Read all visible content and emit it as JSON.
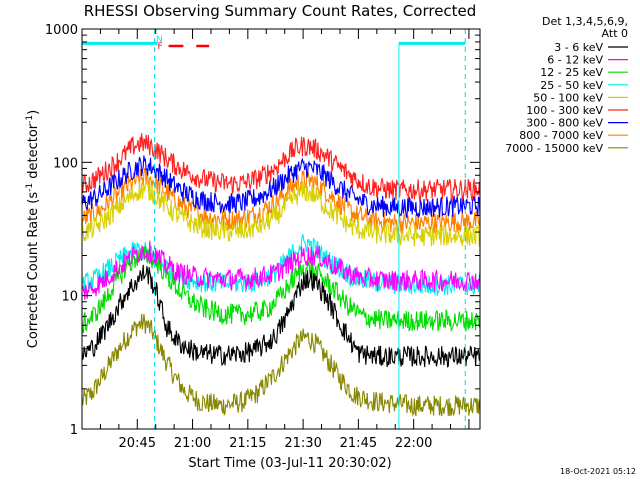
{
  "chart_data": {
    "type": "line",
    "title": "RHESSI Observing Summary Count Rates, Corrected",
    "xlabel": "Start Time (03-Jul-11 20:30:02)",
    "ylabel": "Corrected Count Rate (s⁻¹ detector⁻¹)",
    "ylabel_parts": [
      "Corrected Count Rate (s",
      "-1",
      " detector",
      "-1",
      ")"
    ],
    "yscale": "log",
    "ylim": [
      1,
      1000
    ],
    "yticks": [
      {
        "v": 1,
        "label": "1"
      },
      {
        "v": 10,
        "label": "10"
      },
      {
        "v": 100,
        "label": "100"
      },
      {
        "v": 1000,
        "label": "1000"
      }
    ],
    "xlim_min": [
      0,
      108
    ],
    "xticks": [
      {
        "v": 15,
        "label": "20:45"
      },
      {
        "v": 30,
        "label": "21:00"
      },
      {
        "v": 45,
        "label": "21:15"
      },
      {
        "v": 60,
        "label": "21:30"
      },
      {
        "v": 75,
        "label": "21:45"
      },
      {
        "v": 90,
        "label": "22:00"
      }
    ],
    "legend_header": [
      "Det 1,3,4,5,6,9,",
      "Att 0"
    ],
    "legend_position": "right",
    "series": [
      {
        "name": "3 - 6 keV",
        "color": "#000000",
        "values": [
          [
            0,
            3.6
          ],
          [
            3,
            4.1
          ],
          [
            6,
            5.4
          ],
          [
            9,
            7.5
          ],
          [
            12,
            10.5
          ],
          [
            15,
            13
          ],
          [
            17,
            15
          ],
          [
            18,
            14.5
          ],
          [
            20,
            11
          ],
          [
            21.5,
            8
          ],
          [
            23,
            5.8
          ],
          [
            26,
            4.5
          ],
          [
            29,
            4
          ],
          [
            32,
            3.7
          ],
          [
            36,
            3.6
          ],
          [
            40,
            3.6
          ],
          [
            44,
            3.7
          ],
          [
            48,
            4
          ],
          [
            52,
            4.8
          ],
          [
            55,
            6.5
          ],
          [
            58,
            10
          ],
          [
            60,
            13
          ],
          [
            62,
            13.5
          ],
          [
            64,
            12
          ],
          [
            66,
            10
          ],
          [
            68,
            8
          ],
          [
            70,
            6.2
          ],
          [
            72,
            5
          ],
          [
            75,
            3.7
          ],
          [
            80,
            3.5
          ],
          [
            90,
            3.5
          ],
          [
            104,
            3.5
          ]
        ]
      },
      {
        "name": "6 - 12 keV",
        "color": "#ff00ff",
        "values": [
          [
            0,
            10.5
          ],
          [
            3,
            11.5
          ],
          [
            6,
            13
          ],
          [
            9,
            15.5
          ],
          [
            12,
            18
          ],
          [
            15,
            21
          ],
          [
            18,
            22
          ],
          [
            22,
            18
          ],
          [
            26,
            15
          ],
          [
            30,
            14
          ],
          [
            34,
            13.5
          ],
          [
            40,
            13.3
          ],
          [
            46,
            13.5
          ],
          [
            52,
            14.5
          ],
          [
            56,
            17
          ],
          [
            60,
            20
          ],
          [
            64,
            20
          ],
          [
            68,
            17
          ],
          [
            72,
            15
          ],
          [
            76,
            13.5
          ],
          [
            82,
            13
          ],
          [
            90,
            13
          ],
          [
            104,
            13
          ]
        ]
      },
      {
        "name": "12 - 25 keV",
        "color": "#00dd00",
        "values": [
          [
            0,
            6
          ],
          [
            3,
            7
          ],
          [
            6,
            9
          ],
          [
            9,
            12.5
          ],
          [
            12,
            16.5
          ],
          [
            15,
            19.5
          ],
          [
            18,
            20
          ],
          [
            21,
            17
          ],
          [
            24,
            13
          ],
          [
            27,
            10.5
          ],
          [
            30,
            9
          ],
          [
            33,
            8
          ],
          [
            38,
            7.3
          ],
          [
            44,
            7.2
          ],
          [
            50,
            7.8
          ],
          [
            54,
            10
          ],
          [
            58,
            14
          ],
          [
            60,
            16
          ],
          [
            62,
            16
          ],
          [
            64,
            14.5
          ],
          [
            66,
            13
          ],
          [
            68,
            11.5
          ],
          [
            72,
            8.5
          ],
          [
            76,
            7
          ],
          [
            82,
            6.5
          ],
          [
            90,
            6.5
          ],
          [
            104,
            6.5
          ]
        ]
      },
      {
        "name": "25 - 50 keV",
        "color": "#00eeee",
        "values": [
          [
            0,
            12
          ],
          [
            4,
            13.5
          ],
          [
            8,
            16.5
          ],
          [
            12,
            20
          ],
          [
            15,
            22
          ],
          [
            18,
            21
          ],
          [
            21,
            18
          ],
          [
            24,
            15.5
          ],
          [
            28,
            13.5
          ],
          [
            34,
            12.5
          ],
          [
            40,
            12.3
          ],
          [
            46,
            12.5
          ],
          [
            52,
            14.5
          ],
          [
            56,
            19
          ],
          [
            59,
            24
          ],
          [
            61,
            25
          ],
          [
            63,
            23
          ],
          [
            66,
            19
          ],
          [
            70,
            16
          ],
          [
            74,
            13.5
          ],
          [
            80,
            12.5
          ],
          [
            90,
            12
          ],
          [
            104,
            12
          ]
        ]
      },
      {
        "name": "50 - 100 keV",
        "color": "#d8d000",
        "values": [
          [
            0,
            29
          ],
          [
            4,
            33
          ],
          [
            8,
            41
          ],
          [
            12,
            52
          ],
          [
            15,
            61
          ],
          [
            17,
            63
          ],
          [
            19,
            60
          ],
          [
            22,
            50
          ],
          [
            25,
            42
          ],
          [
            28,
            37
          ],
          [
            32,
            33
          ],
          [
            36,
            31
          ],
          [
            40,
            30
          ],
          [
            44,
            30.5
          ],
          [
            48,
            33
          ],
          [
            52,
            38
          ],
          [
            55,
            46
          ],
          [
            58,
            56
          ],
          [
            60,
            60
          ],
          [
            62,
            59
          ],
          [
            64,
            54
          ],
          [
            66,
            47
          ],
          [
            70,
            38
          ],
          [
            74,
            32
          ],
          [
            80,
            29
          ],
          [
            90,
            28
          ],
          [
            104,
            28
          ]
        ]
      },
      {
        "name": "100 - 300 keV",
        "color": "#ff2020",
        "values": [
          [
            0,
            66
          ],
          [
            4,
            76
          ],
          [
            8,
            93
          ],
          [
            12,
            117
          ],
          [
            14,
            133
          ],
          [
            16,
            139
          ],
          [
            18,
            136
          ],
          [
            20,
            125
          ],
          [
            24,
            101
          ],
          [
            28,
            86
          ],
          [
            32,
            76
          ],
          [
            36,
            71
          ],
          [
            40,
            69
          ],
          [
            44,
            70
          ],
          [
            48,
            76
          ],
          [
            52,
            89
          ],
          [
            55,
            107
          ],
          [
            58,
            127
          ],
          [
            60,
            133
          ],
          [
            62,
            131
          ],
          [
            64,
            123
          ],
          [
            66,
            113
          ],
          [
            70,
            91
          ],
          [
            74,
            76
          ],
          [
            78,
            66
          ],
          [
            84,
            62
          ],
          [
            92,
            62
          ],
          [
            104,
            63
          ]
        ]
      },
      {
        "name": "300 - 800 keV",
        "color": "#0000ff",
        "values": [
          [
            0,
            49
          ],
          [
            4,
            55
          ],
          [
            8,
            67
          ],
          [
            12,
            82
          ],
          [
            15,
            93
          ],
          [
            17,
            96
          ],
          [
            19,
            92
          ],
          [
            22,
            80
          ],
          [
            25,
            67
          ],
          [
            28,
            59
          ],
          [
            32,
            53
          ],
          [
            36,
            50
          ],
          [
            40,
            49
          ],
          [
            44,
            50
          ],
          [
            48,
            55
          ],
          [
            52,
            64
          ],
          [
            55,
            75
          ],
          [
            58,
            87
          ],
          [
            60,
            92
          ],
          [
            62,
            91
          ],
          [
            64,
            86
          ],
          [
            66,
            79
          ],
          [
            70,
            64
          ],
          [
            74,
            54
          ],
          [
            78,
            48
          ],
          [
            84,
            46
          ],
          [
            92,
            46
          ],
          [
            104,
            47
          ]
        ]
      },
      {
        "name": "800 - 7000 keV",
        "color": "#ff8000",
        "values": [
          [
            0,
            37
          ],
          [
            4,
            42
          ],
          [
            8,
            52
          ],
          [
            12,
            65
          ],
          [
            15,
            74
          ],
          [
            17,
            77
          ],
          [
            19,
            74
          ],
          [
            22,
            63
          ],
          [
            25,
            53
          ],
          [
            28,
            46
          ],
          [
            32,
            41
          ],
          [
            36,
            38
          ],
          [
            40,
            37
          ],
          [
            44,
            38
          ],
          [
            48,
            42
          ],
          [
            52,
            49
          ],
          [
            55,
            58
          ],
          [
            58,
            69
          ],
          [
            60,
            74
          ],
          [
            62,
            73
          ],
          [
            64,
            68
          ],
          [
            66,
            61
          ],
          [
            70,
            49
          ],
          [
            74,
            41
          ],
          [
            78,
            37
          ],
          [
            84,
            35
          ],
          [
            92,
            35
          ],
          [
            104,
            36
          ]
        ]
      },
      {
        "name": "7000 - 15000 keV",
        "color": "#888800",
        "values": [
          [
            0,
            1.6
          ],
          [
            3,
            1.9
          ],
          [
            6,
            2.6
          ],
          [
            9,
            3.6
          ],
          [
            12,
            4.8
          ],
          [
            15,
            6
          ],
          [
            17,
            6.3
          ],
          [
            19,
            5.4
          ],
          [
            22,
            3.6
          ],
          [
            25,
            2.5
          ],
          [
            28,
            1.9
          ],
          [
            32,
            1.6
          ],
          [
            38,
            1.5
          ],
          [
            44,
            1.6
          ],
          [
            48,
            1.9
          ],
          [
            52,
            2.5
          ],
          [
            56,
            3.6
          ],
          [
            59,
            4.6
          ],
          [
            61,
            4.9
          ],
          [
            63,
            4.5
          ],
          [
            66,
            3.5
          ],
          [
            70,
            2.4
          ],
          [
            74,
            1.8
          ],
          [
            80,
            1.6
          ],
          [
            90,
            1.5
          ],
          [
            104,
            1.5
          ]
        ]
      }
    ],
    "attenuator_state": {
      "color": "#00eeee",
      "level": 780,
      "segments": [
        [
          0,
          20.5
        ],
        [
          86,
          104
        ]
      ]
    },
    "dashed_markers_min": [
      19.7,
      104
    ],
    "flags": [
      {
        "label": "N",
        "color": "#00eeee",
        "x_min": 21,
        "segments": []
      },
      {
        "label": "F",
        "color": "#ff0000",
        "x_min": 21.2,
        "segments": [
          [
            23.5,
            27.5
          ],
          [
            31,
            34.5
          ]
        ]
      }
    ]
  },
  "timestamp": "18-Oct-2021 05:12"
}
